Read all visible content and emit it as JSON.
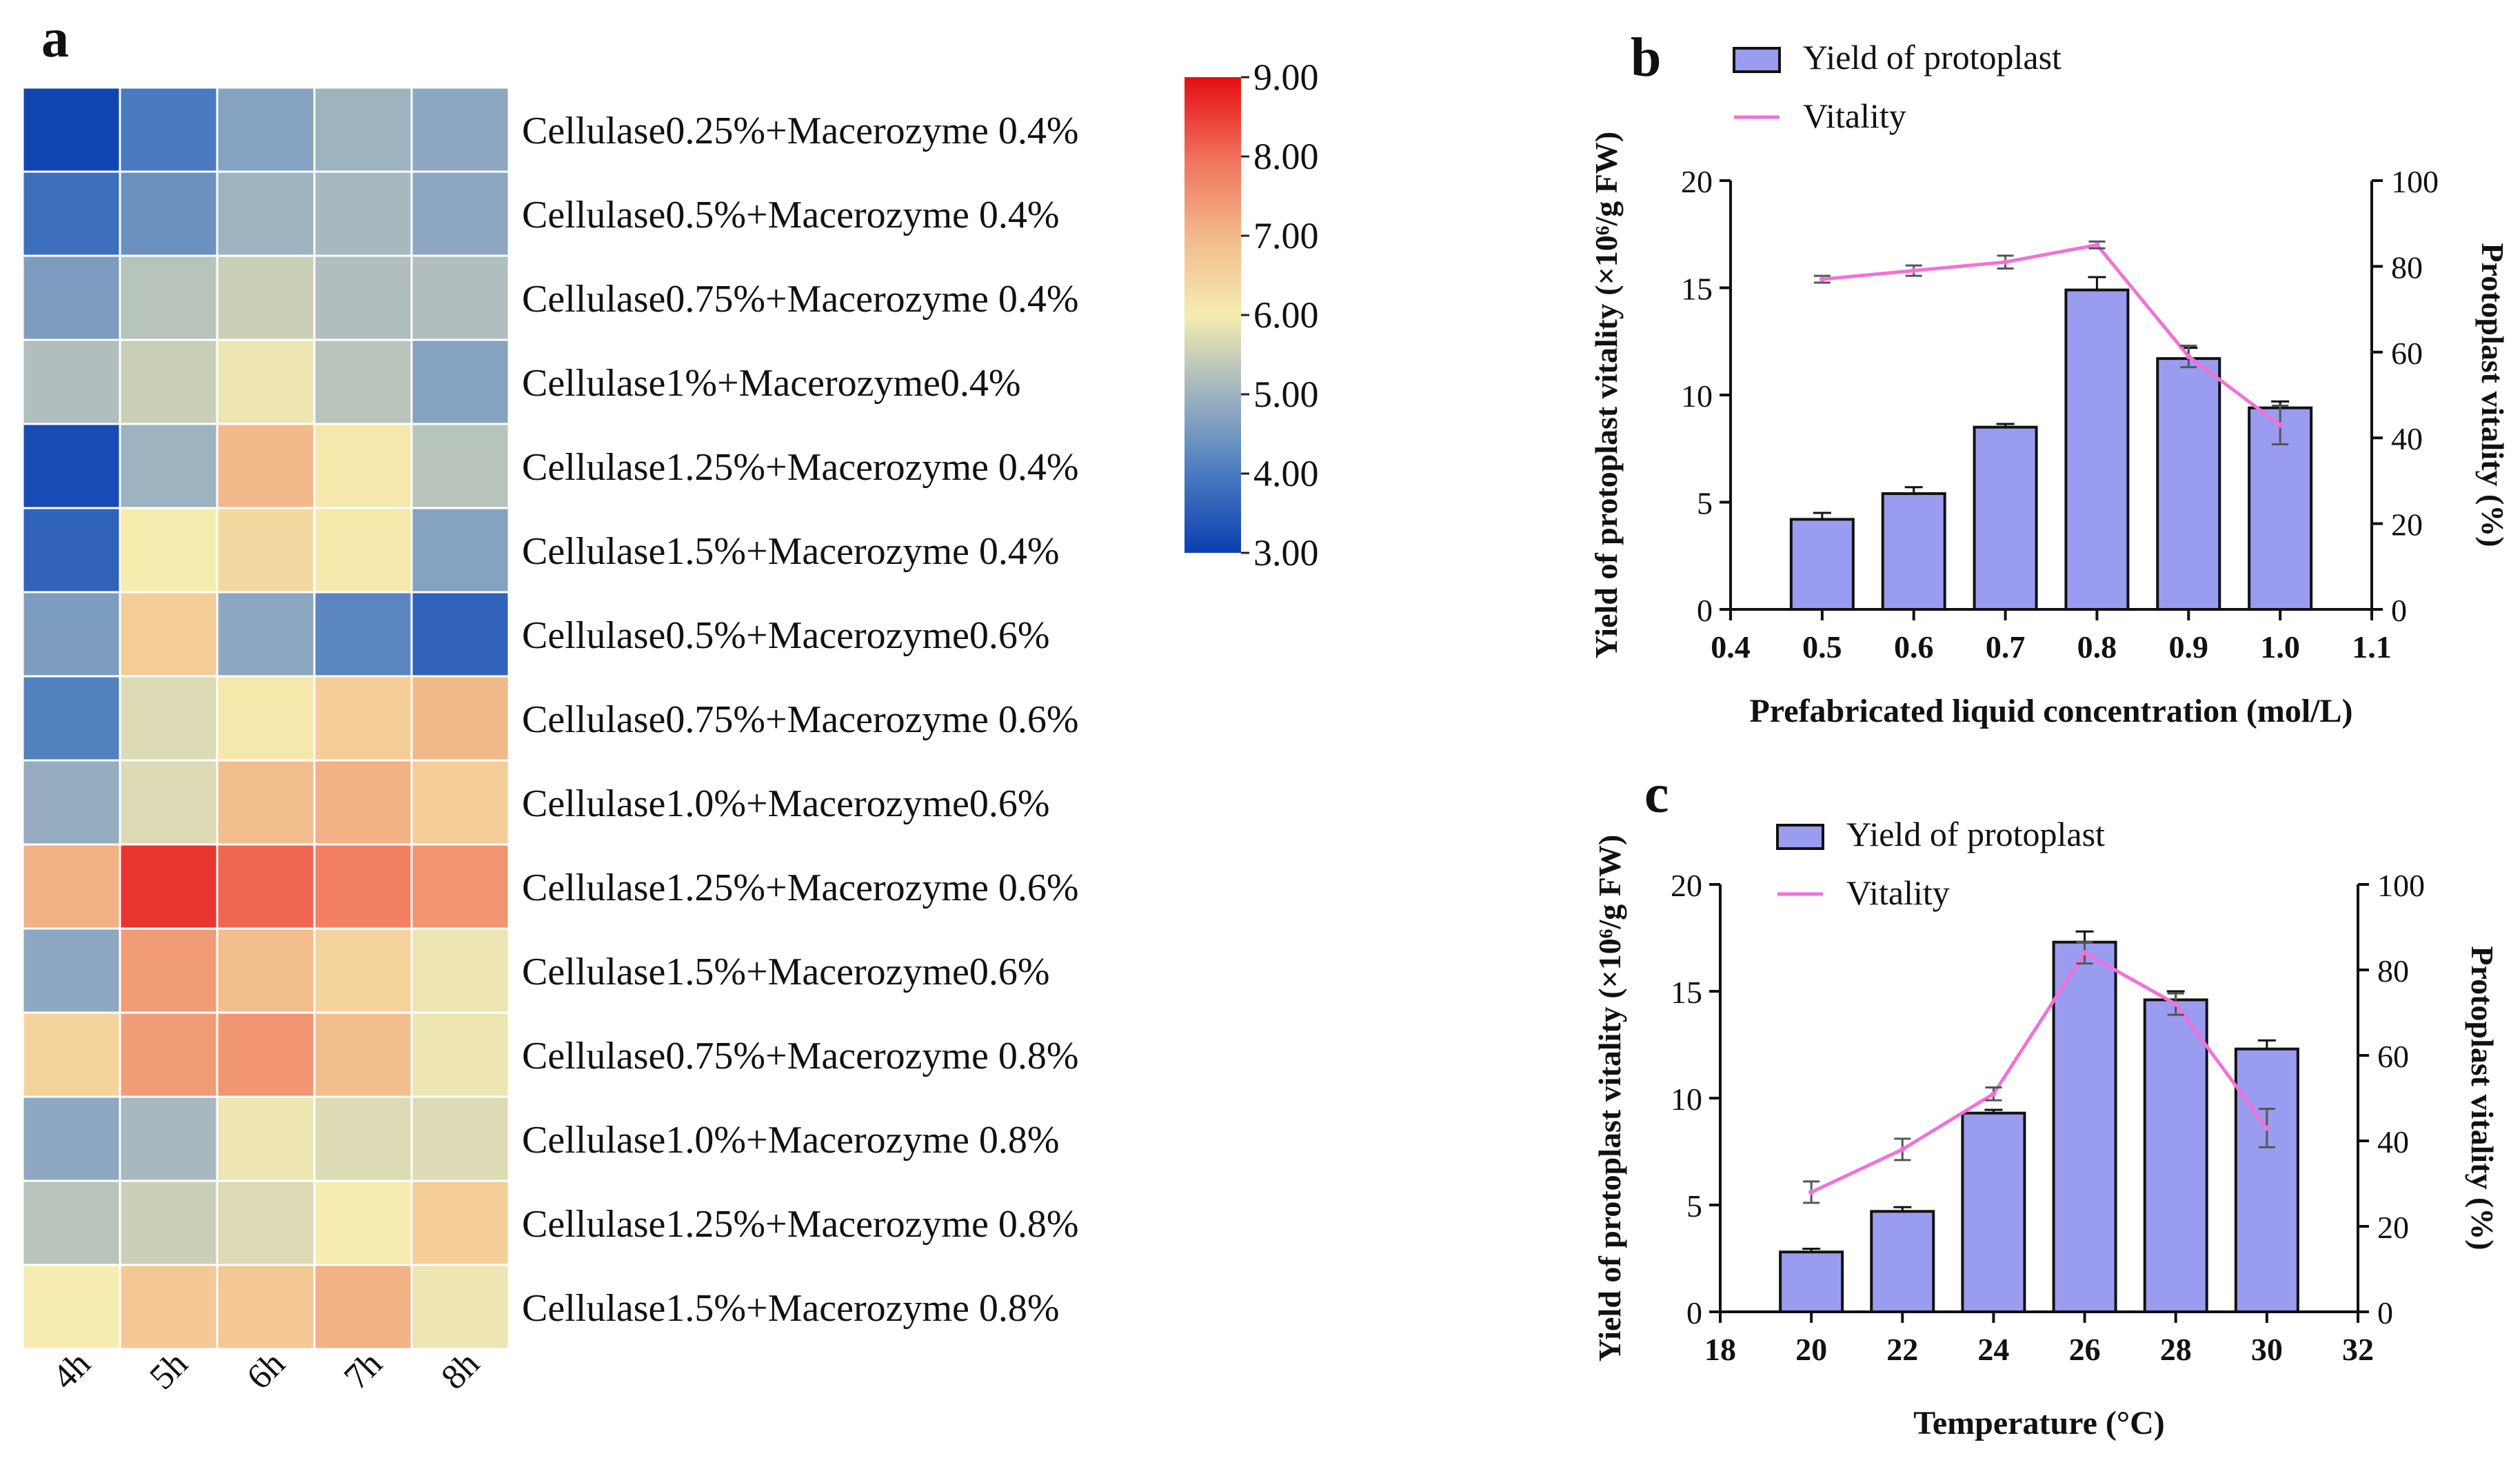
{
  "figure": {
    "panel_a_letter": "a",
    "panel_b_letter": "b",
    "panel_c_letter": "c"
  },
  "chart_data": [
    {
      "panel": "a",
      "type": "heatmap",
      "columns": [
        "4h",
        "5h",
        "6h",
        "7h",
        "8h"
      ],
      "rows": [
        "Cellulase0.25%+Macerozyme 0.4%",
        "Cellulase0.5%+Macerozyme 0.4%",
        "Cellulase0.75%+Macerozyme 0.4%",
        "Cellulase1%+Macerozyme0.4%",
        "Cellulase1.25%+Macerozyme 0.4%",
        "Cellulase1.5%+Macerozyme 0.4%",
        "Cellulase0.5%+Macerozyme0.6%",
        "Cellulase0.75%+Macerozyme 0.6%",
        "Cellulase1.0%+Macerozyme0.6%",
        "Cellulase1.25%+Macerozyme 0.6%",
        "Cellulase1.5%+Macerozyme0.6%",
        "Cellulase0.75%+Macerozyme 0.8%",
        "Cellulase1.0%+Macerozyme 0.8%",
        "Cellulase1.25%+Macerozyme 0.8%",
        "Cellulase1.5%+Macerozyme 0.8%"
      ],
      "values": [
        [
          3.1,
          4.0,
          4.7,
          5.0,
          4.8
        ],
        [
          3.8,
          4.4,
          5.0,
          5.1,
          4.8
        ],
        [
          4.6,
          5.3,
          5.5,
          5.2,
          5.2
        ],
        [
          5.2,
          5.5,
          5.9,
          5.3,
          4.7
        ],
        [
          3.2,
          5.0,
          7.0,
          6.1,
          5.3
        ],
        [
          3.6,
          6.0,
          6.4,
          6.1,
          4.7
        ],
        [
          4.6,
          6.6,
          4.8,
          4.2,
          3.6
        ],
        [
          4.1,
          5.7,
          6.1,
          6.6,
          7.0
        ],
        [
          4.9,
          5.7,
          6.9,
          7.1,
          6.6
        ],
        [
          7.1,
          8.6,
          8.1,
          7.8,
          7.5
        ],
        [
          4.8,
          7.4,
          6.9,
          6.5,
          5.9
        ],
        [
          6.5,
          7.4,
          7.5,
          6.9,
          5.9
        ],
        [
          4.8,
          5.1,
          5.9,
          5.7,
          5.7
        ],
        [
          5.3,
          5.5,
          5.7,
          6.0,
          6.6
        ],
        [
          6.0,
          6.7,
          6.7,
          7.1,
          5.9
        ]
      ],
      "colorbar": {
        "min": 3.0,
        "max": 9.0,
        "ticks": [
          "9.00",
          "8.00",
          "7.00",
          "6.00",
          "5.00",
          "4.00",
          "3.00"
        ],
        "colors": [
          "#0b3fb0",
          "#4a7bc0",
          "#9eb3c0",
          "#f6ecb0",
          "#f2b98a",
          "#f0705a",
          "#e40d12"
        ]
      }
    },
    {
      "panel": "b",
      "type": "bar+line",
      "x": [
        0.5,
        0.6,
        0.7,
        0.8,
        0.9,
        1.0
      ],
      "xticks": [
        "0.4",
        "0.5",
        "0.6",
        "0.7",
        "0.8",
        "0.9",
        "1.0",
        "1.1"
      ],
      "xlim": [
        0.4,
        1.1
      ],
      "series": [
        {
          "name": "Yield of protoplast",
          "type": "bar",
          "axis": "left",
          "values": [
            4.2,
            5.4,
            8.5,
            14.9,
            11.7,
            9.4
          ],
          "errors": [
            0.3,
            0.3,
            0.15,
            0.6,
            0.5,
            0.3
          ],
          "color": "#9a9cf0"
        },
        {
          "name": "Vitality",
          "type": "line",
          "axis": "right",
          "values": [
            77,
            79,
            81,
            85,
            59,
            43
          ],
          "errors": [
            0.8,
            1.2,
            1.5,
            0.8,
            2.5,
            4.5
          ],
          "color": "#f072d8"
        }
      ],
      "ylim_left": [
        0,
        20
      ],
      "yticks_left": [
        "0",
        "5",
        "10",
        "15",
        "20"
      ],
      "ylim_right": [
        0,
        100
      ],
      "yticks_right": [
        "0",
        "20",
        "40",
        "60",
        "80",
        "100"
      ],
      "legend": [
        "Yield of protoplast",
        "Vitality"
      ],
      "xlabel": "Prefabricated liquid concentration (mol/L)",
      "ylabel": "Yield of protoplast vitality (×10⁶/g FW)",
      "ylabel_right": "Protoplast vitality (%)"
    },
    {
      "panel": "c",
      "type": "bar+line",
      "x": [
        20,
        22,
        24,
        26,
        28,
        30
      ],
      "xticks": [
        "18",
        "20",
        "22",
        "24",
        "26",
        "28",
        "30",
        "32"
      ],
      "xlim": [
        18,
        32
      ],
      "series": [
        {
          "name": "Yield of protoplast",
          "type": "bar",
          "axis": "left",
          "values": [
            2.8,
            4.7,
            9.3,
            17.3,
            14.6,
            12.3
          ],
          "errors": [
            0.15,
            0.2,
            0.15,
            0.5,
            0.4,
            0.4
          ],
          "color": "#9a9cf0"
        },
        {
          "name": "Vitality",
          "type": "line",
          "axis": "right",
          "values": [
            28,
            38,
            51,
            84,
            72,
            43
          ],
          "errors": [
            2.5,
            2.5,
            1.5,
            2.5,
            2.5,
            4.5
          ],
          "color": "#f072d8"
        }
      ],
      "ylim_left": [
        0,
        20
      ],
      "yticks_left": [
        "0",
        "5",
        "10",
        "15",
        "20"
      ],
      "ylim_right": [
        0,
        100
      ],
      "yticks_right": [
        "0",
        "20",
        "40",
        "60",
        "80",
        "100"
      ],
      "legend": [
        "Yield of protoplast",
        "Vitality"
      ],
      "xlabel": "Temperature (°C)",
      "ylabel": "Yield of protoplast vitality (×10⁶/g FW)",
      "ylabel_right": "Protoplast vitality (%)"
    }
  ]
}
